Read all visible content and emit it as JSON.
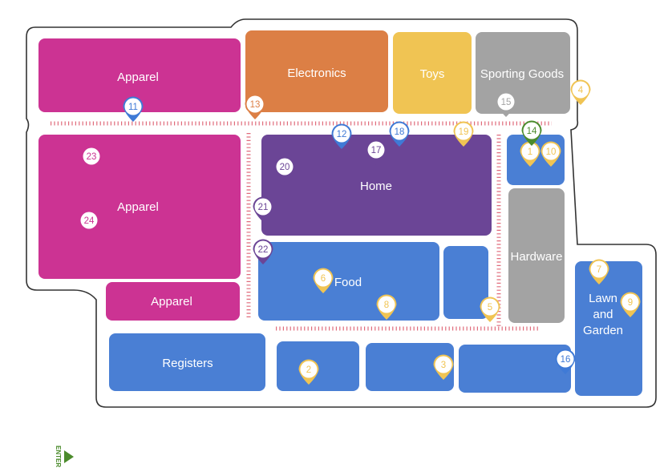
{
  "departments": [
    {
      "id": "apparel-top",
      "label": "Apparel",
      "color": "#cc3393"
    },
    {
      "id": "electronics",
      "label": "Electronics",
      "color": "#dc7f45"
    },
    {
      "id": "toys",
      "label": "Toys",
      "color": "#f0c453"
    },
    {
      "id": "sporting-goods",
      "label": "Sporting Goods",
      "color": "#a3a3a3"
    },
    {
      "id": "apparel-left",
      "label": "Apparel",
      "color": "#cc3393"
    },
    {
      "id": "apparel-bottom",
      "label": "Apparel",
      "color": "#cc3393"
    },
    {
      "id": "home",
      "label": "Home",
      "color": "#6b4596"
    },
    {
      "id": "food",
      "label": "Food",
      "color": "#4a7fd4"
    },
    {
      "id": "food-annex",
      "label": "",
      "color": "#4a7fd4"
    },
    {
      "id": "small-blue-block",
      "label": "",
      "color": "#4a7fd4"
    },
    {
      "id": "hardware",
      "label": "Hardware",
      "color": "#a3a3a3"
    },
    {
      "id": "lawn-and-garden",
      "label": "Lawn\nand\nGarden",
      "color": "#4a7fd4"
    },
    {
      "id": "registers",
      "label": "Registers",
      "color": "#4a7fd4"
    },
    {
      "id": "checkout-2",
      "label": "",
      "color": "#4a7fd4"
    },
    {
      "id": "checkout-3",
      "label": "",
      "color": "#4a7fd4"
    },
    {
      "id": "checkout-4",
      "label": "",
      "color": "#4a7fd4"
    }
  ],
  "pins": [
    {
      "number": "1",
      "color": "#f0c453"
    },
    {
      "number": "2",
      "color": "#f0c453"
    },
    {
      "number": "3",
      "color": "#f0c453"
    },
    {
      "number": "4",
      "color": "#f0c453"
    },
    {
      "number": "5",
      "color": "#f0c453"
    },
    {
      "number": "6",
      "color": "#f0c453"
    },
    {
      "number": "7",
      "color": "#f0c453"
    },
    {
      "number": "8",
      "color": "#f0c453"
    },
    {
      "number": "9",
      "color": "#f0c453"
    },
    {
      "number": "10",
      "color": "#f0c453"
    },
    {
      "number": "11",
      "color": "#3f7ad6"
    },
    {
      "number": "12",
      "color": "#3f7ad6"
    },
    {
      "number": "13",
      "color": "#dc7f45"
    },
    {
      "number": "14",
      "color": "#4b8b2c"
    },
    {
      "number": "15",
      "color": "#a3a3a3"
    },
    {
      "number": "16",
      "color": "#3f7ad6"
    },
    {
      "number": "17",
      "color": "#6b4596"
    },
    {
      "number": "18",
      "color": "#3f7ad6"
    },
    {
      "number": "19",
      "color": "#f0c453"
    },
    {
      "number": "20",
      "color": "#6b4596"
    },
    {
      "number": "21",
      "color": "#6b4596"
    },
    {
      "number": "22",
      "color": "#6b4596"
    },
    {
      "number": "23",
      "color": "#cc3393"
    },
    {
      "number": "24",
      "color": "#cc3393"
    }
  ],
  "entrance": {
    "label": "ENTER",
    "color": "#4b8b2c"
  },
  "colors": {
    "outline": "#333333",
    "rail": "#e06b7b",
    "background": "#ffffff"
  }
}
